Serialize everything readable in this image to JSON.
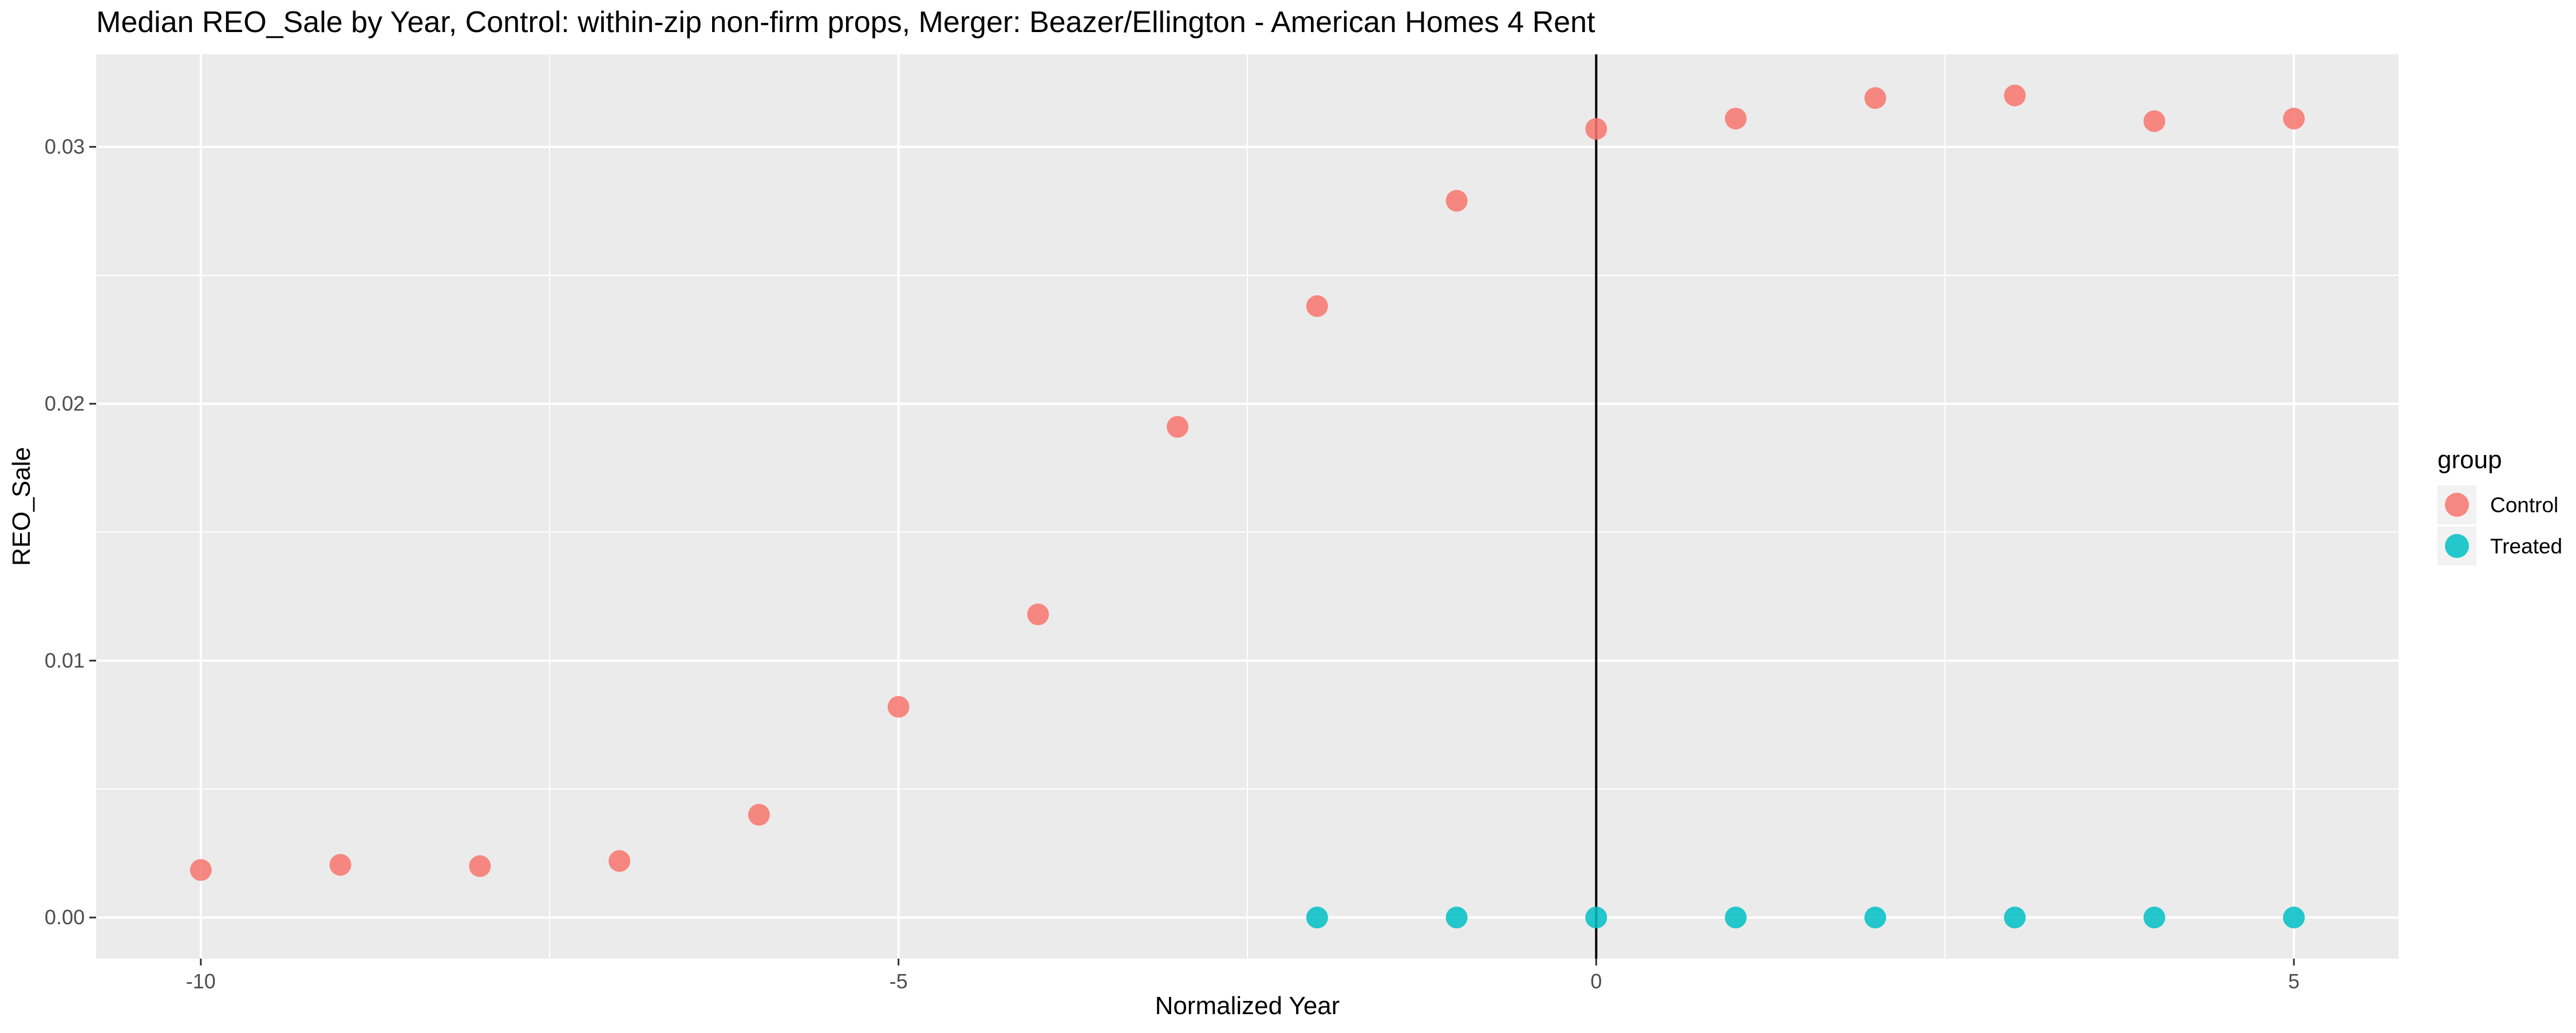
{
  "chart_data": {
    "type": "scatter",
    "title": "Median REO_Sale by Year, Control: within-zip non-firm props, Merger: Beazer/Ellington - American Homes 4 Rent",
    "xlabel": "Normalized Year",
    "ylabel": "REO_Sale",
    "xlim": [
      -10.75,
      5.75
    ],
    "ylim": [
      -0.0016,
      0.0336
    ],
    "x_ticks": [
      -10,
      -5,
      0,
      5
    ],
    "x_tick_labels": [
      "-10",
      "-5",
      "0",
      "5"
    ],
    "y_ticks": [
      0.0,
      0.01,
      0.02,
      0.03
    ],
    "y_tick_labels": [
      "0.00",
      "0.01",
      "0.02",
      "0.03"
    ],
    "vline_x": 0,
    "grid": true,
    "legend": {
      "title": "group",
      "position": "right"
    },
    "series": [
      {
        "name": "Control",
        "color": "#F8766D",
        "x": [
          -10,
          -9,
          -8,
          -7,
          -6,
          -5,
          -4,
          -3,
          -2,
          -1,
          0,
          1,
          2,
          3,
          4,
          5
        ],
        "y": [
          0.00185,
          0.00205,
          0.002,
          0.0022,
          0.004,
          0.0082,
          0.0118,
          0.0191,
          0.0238,
          0.0279,
          0.0307,
          0.0311,
          0.0319,
          0.032,
          0.031,
          0.0311
        ]
      },
      {
        "name": "Treated",
        "color": "#00BFC4",
        "x": [
          -2,
          -1,
          0,
          1,
          2,
          3,
          4,
          5
        ],
        "y": [
          0,
          0,
          0,
          0,
          0,
          0,
          0,
          0
        ]
      }
    ]
  }
}
